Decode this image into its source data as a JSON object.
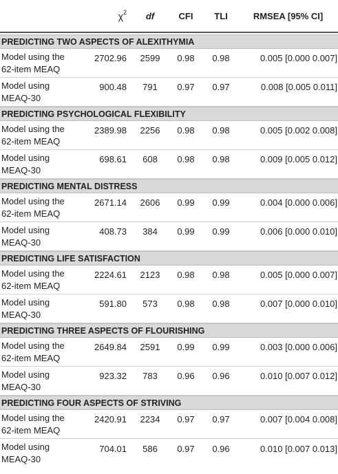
{
  "header": {
    "chi_symbol": "χ",
    "chi_superscript": "2",
    "df": "df",
    "cfi": "CFI",
    "tli": "TLI",
    "rmsea": "RMSEA [95% CI]"
  },
  "sections": [
    {
      "title": "PREDICTING TWO ASPECTS OF ALEXITHYMIA",
      "rows": [
        {
          "label": "Model using the 62-item MEAQ",
          "chi": "2702.96",
          "df": "2599",
          "cfi": "0.98",
          "tli": "0.98",
          "rmsea": "0.005 [0.000 0.007]"
        },
        {
          "label": "Model using MEAQ-30",
          "chi": "900.48",
          "df": "791",
          "cfi": "0.97",
          "tli": "0.97",
          "rmsea": "0.008 [0.005 0.011]"
        }
      ]
    },
    {
      "title": "PREDICTING PSYCHOLOGICAL FLEXIBILITY",
      "rows": [
        {
          "label": "Model using the 62-item MEAQ",
          "chi": "2389.98",
          "df": "2256",
          "cfi": "0.98",
          "tli": "0.98",
          "rmsea": "0.005 [0.002 0.008]"
        },
        {
          "label": "Model using MEAQ-30",
          "chi": "698.61",
          "df": "608",
          "cfi": "0.98",
          "tli": "0.98",
          "rmsea": "0.009 [0.005 0.012]"
        }
      ]
    },
    {
      "title": "PREDICTING MENTAL DISTRESS",
      "rows": [
        {
          "label": "Model using the 62-item MEAQ",
          "chi": "2671.14",
          "df": "2606",
          "cfi": "0.99",
          "tli": "0.99",
          "rmsea": "0.004 [0.000 0.006]"
        },
        {
          "label": "Model using MEAQ-30",
          "chi": "408.73",
          "df": "384",
          "cfi": "0.99",
          "tli": "0.99",
          "rmsea": "0.006 [0.000 0.010]"
        }
      ]
    },
    {
      "title": "PREDICTING LIFE SATISFACTION",
      "rows": [
        {
          "label": "Model using the 62-item MEAQ",
          "chi": "2224.61",
          "df": "2123",
          "cfi": "0.98",
          "tli": "0.98",
          "rmsea": "0.005 [0.000 0.007]"
        },
        {
          "label": "Model using MEAQ-30",
          "chi": "591.80",
          "df": "573",
          "cfi": "0.98",
          "tli": "0.98",
          "rmsea": "0.007 [0.000 0.010]"
        }
      ]
    },
    {
      "title": "PREDICTING THREE ASPECTS OF FLOURISHING",
      "rows": [
        {
          "label": "Model using the 62-item MEAQ",
          "chi": "2649.84",
          "df": "2591",
          "cfi": "0.99",
          "tli": "0.99",
          "rmsea": "0.003 [0.000 0.006]"
        },
        {
          "label": "Model using MEAQ-30",
          "chi": "923.32",
          "df": "783",
          "cfi": "0.96",
          "tli": "0.96",
          "rmsea": "0.010 [0.007 0.012]"
        }
      ]
    },
    {
      "title": "PREDICTING FOUR ASPECTS OF STRIVING",
      "rows": [
        {
          "label": "Model using the 62-item MEAQ",
          "chi": "2420.91",
          "df": "2234",
          "cfi": "0.97",
          "tli": "0.97",
          "rmsea": "0.007 [0.004 0.008]"
        },
        {
          "label": "Model using MEAQ-30",
          "chi": "704.01",
          "df": "586",
          "cfi": "0.97",
          "tli": "0.96",
          "rmsea": "0.010 [0.007 0.013]"
        }
      ]
    }
  ]
}
